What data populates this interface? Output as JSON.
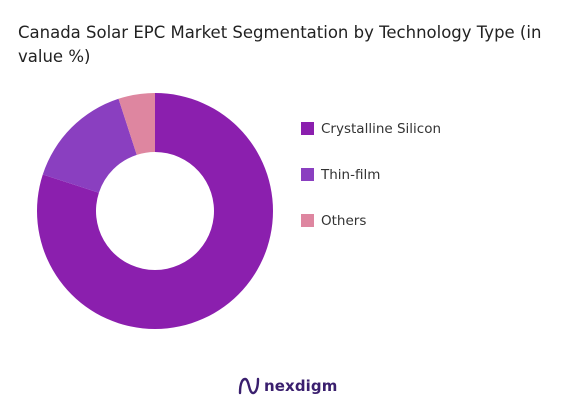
{
  "chart_data": {
    "type": "pie",
    "variant": "donut",
    "title": "Canada Solar EPC Market Segmentation by Technology Type (in value %)",
    "categories": [
      "Crystalline Silicon",
      "Thin-film",
      "Others"
    ],
    "values": [
      80,
      15,
      5
    ],
    "colors": [
      "#8b1fae",
      "#8a3fc0",
      "#de86a0"
    ],
    "legend_position": "right",
    "start_angle_deg": 0,
    "direction": "clockwise"
  },
  "brand": {
    "name": "nexdigm",
    "logo_icon": "nexdigm-logo-icon"
  }
}
